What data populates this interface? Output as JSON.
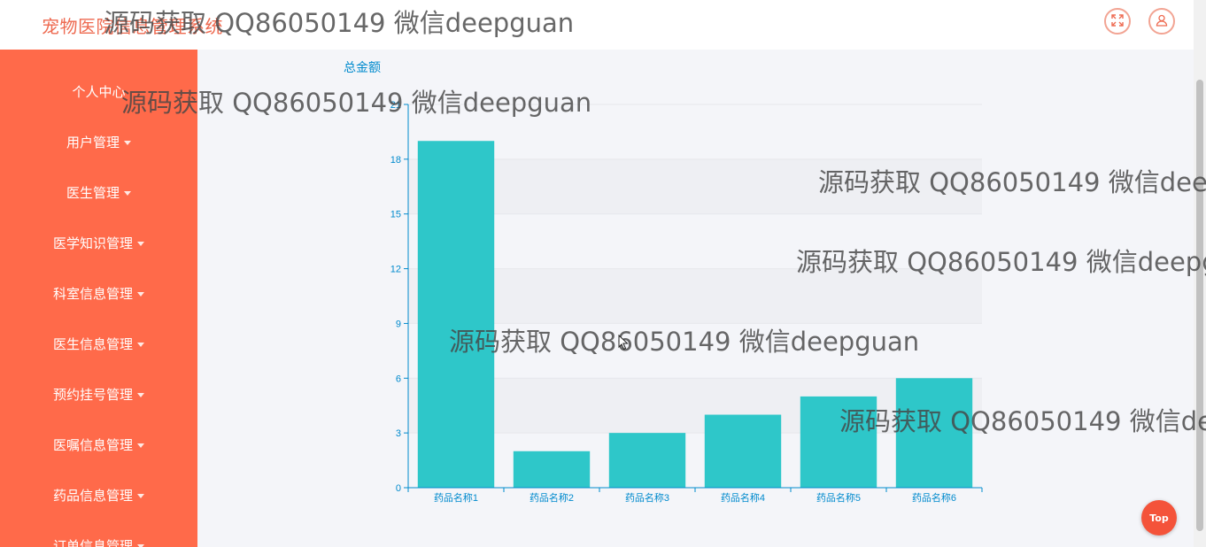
{
  "header": {
    "app_title": "宠物医院信息管理系统",
    "fullscreen_icon": "fullscreen-icon",
    "user_icon": "user-icon"
  },
  "sidebar": {
    "items": [
      {
        "label": "个人中心",
        "has_submenu": false
      },
      {
        "label": "用户管理",
        "has_submenu": true
      },
      {
        "label": "医生管理",
        "has_submenu": true
      },
      {
        "label": "医学知识管理",
        "has_submenu": true
      },
      {
        "label": "科室信息管理",
        "has_submenu": true
      },
      {
        "label": "医生信息管理",
        "has_submenu": true
      },
      {
        "label": "预约挂号管理",
        "has_submenu": true
      },
      {
        "label": "医嘱信息管理",
        "has_submenu": true
      },
      {
        "label": "药品信息管理",
        "has_submenu": true
      },
      {
        "label": "订单信息管理",
        "has_submenu": true
      }
    ]
  },
  "colors": {
    "sidebar_bg": "#ff6a4a",
    "title_color": "#ee6a50",
    "bar_color": "#2ec7c9",
    "axis_color": "#008acd"
  },
  "chart_data": {
    "type": "bar",
    "title": "总金额",
    "categories": [
      "药品名称1",
      "药品名称2",
      "药品名称3",
      "药品名称4",
      "药品名称5",
      "药品名称6"
    ],
    "values": [
      19,
      2,
      3,
      4,
      5,
      6
    ],
    "ylim": [
      0,
      21
    ],
    "yticks": [
      0,
      3,
      6,
      9,
      12,
      15,
      18,
      21
    ],
    "grid": "alternating horizontal bands"
  },
  "watermark": "源码获取 QQ86050149 微信deepguan",
  "back_to_top": "Top"
}
